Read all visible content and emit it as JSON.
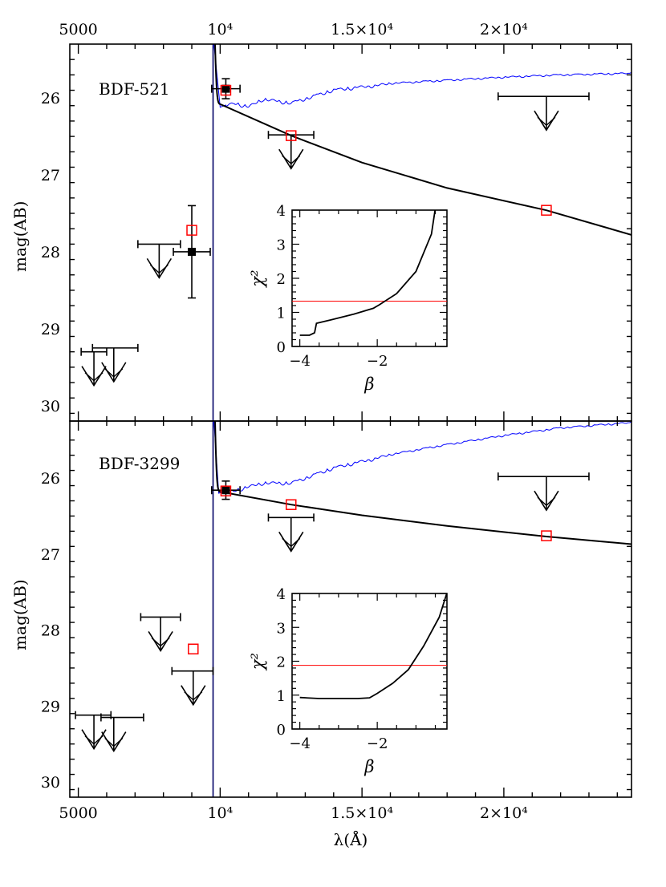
{
  "chart_data": [
    {
      "type": "scatter",
      "panel": "top",
      "label": "BDF-521",
      "xlabel": "λ(Å)",
      "ylabel": "mag(AB)",
      "xlim": [
        4700,
        24500
      ],
      "ylim": [
        30.2,
        25.3
      ],
      "x_ticks": [
        5000,
        10000,
        15000,
        20000
      ],
      "x_tick_labels": [
        "5000",
        "10⁴",
        "1.5×10⁴",
        "2×10⁴"
      ],
      "y_ticks": [
        26,
        27,
        28,
        29,
        30
      ],
      "detections": [
        {
          "x": 10200,
          "y": 25.88,
          "yerr": 0.13,
          "xerr": 500
        },
        {
          "x": 9000,
          "y": 28.0,
          "yerr": 0.6,
          "xerr": 650
        }
      ],
      "upper_limits": [
        {
          "x": 5550,
          "y": 29.3,
          "xmin": 5100,
          "xmax": 6000
        },
        {
          "x": 6250,
          "y": 29.25,
          "xmin": 5500,
          "xmax": 7100
        },
        {
          "x": 7850,
          "y": 27.9,
          "xmin": 7100,
          "xmax": 8600
        },
        {
          "x": 12500,
          "y": 26.48,
          "xmin": 11700,
          "xmax": 13300
        },
        {
          "x": 21500,
          "y": 25.98,
          "xmin": 19800,
          "xmax": 23000
        }
      ],
      "model_points": [
        {
          "x": 9000,
          "y": 27.72
        },
        {
          "x": 10200,
          "y": 25.9
        },
        {
          "x": 12500,
          "y": 26.49
        },
        {
          "x": 21500,
          "y": 27.46
        }
      ],
      "best_fit_powerlaw": {
        "x": [
          10000,
          12500,
          15000,
          18000,
          21500,
          24500
        ],
        "y": [
          26.08,
          26.49,
          26.84,
          27.17,
          27.46,
          27.78
        ]
      },
      "galaxy_template": {
        "x": [
          10000,
          10500,
          11000,
          11500,
          12500,
          14000,
          16000,
          18000,
          20000,
          22000,
          24500
        ],
        "y": [
          26.12,
          26.05,
          26.1,
          26.0,
          26.05,
          25.88,
          25.8,
          25.76,
          25.72,
          25.69,
          25.67
        ]
      },
      "inset": {
        "xlabel": "β",
        "ylabel": "χ²",
        "xlim": [
          -4.2,
          -0.2
        ],
        "ylim": [
          0,
          4
        ],
        "x_ticks": [
          -4,
          -2
        ],
        "y_ticks": [
          0,
          1,
          2,
          3,
          4
        ],
        "threshold": 1.33,
        "curve": {
          "x": [
            -4.0,
            -3.75,
            -3.62,
            -3.57,
            -3.2,
            -2.6,
            -2.1,
            -1.95,
            -1.5,
            -1.0,
            -0.6,
            -0.5
          ],
          "y": [
            0.33,
            0.33,
            0.4,
            0.68,
            0.78,
            0.95,
            1.12,
            1.22,
            1.55,
            2.2,
            3.3,
            4.05
          ]
        }
      }
    },
    {
      "type": "scatter",
      "panel": "bottom",
      "label": "BDF-3299",
      "xlabel": "λ(Å)",
      "ylabel": "mag(AB)",
      "xlim": [
        4700,
        24500
      ],
      "ylim": [
        30.2,
        25.25
      ],
      "x_ticks": [
        5000,
        10000,
        15000,
        20000
      ],
      "x_tick_labels": [
        "5000",
        "10⁴",
        "1.5×10⁴",
        "2×10⁴"
      ],
      "y_ticks": [
        26,
        27,
        28,
        29,
        30
      ],
      "detections": [
        {
          "x": 10200,
          "y": 26.16,
          "yerr": 0.12,
          "xerr": 500
        }
      ],
      "upper_limits": [
        {
          "x": 5550,
          "y": 29.12,
          "xmin": 4900,
          "xmax": 6150
        },
        {
          "x": 6250,
          "y": 29.15,
          "xmin": 5800,
          "xmax": 7300
        },
        {
          "x": 7900,
          "y": 27.83,
          "xmin": 7200,
          "xmax": 8600
        },
        {
          "x": 9050,
          "y": 28.54,
          "xmin": 8300,
          "xmax": 9750
        },
        {
          "x": 12500,
          "y": 26.52,
          "xmin": 11700,
          "xmax": 13300
        },
        {
          "x": 21500,
          "y": 25.98,
          "xmin": 19800,
          "xmax": 23000
        }
      ],
      "model_points": [
        {
          "x": 9050,
          "y": 28.25
        },
        {
          "x": 10200,
          "y": 26.17
        },
        {
          "x": 12500,
          "y": 26.35
        },
        {
          "x": 21500,
          "y": 26.76
        }
      ],
      "best_fit_powerlaw": {
        "x": [
          10000,
          12500,
          15000,
          18000,
          21500,
          24500
        ],
        "y": [
          26.18,
          26.35,
          26.49,
          26.63,
          26.77,
          26.87
        ]
      },
      "galaxy_template": {
        "x": [
          9950,
          10500,
          11000,
          11500,
          12500,
          14000,
          16000,
          18000,
          20000,
          22000,
          24500
        ],
        "y": [
          26.2,
          26.15,
          26.1,
          26.05,
          26.05,
          25.85,
          25.68,
          25.55,
          25.43,
          25.33,
          25.26
        ]
      },
      "inset": {
        "xlabel": "β",
        "ylabel": "χ²",
        "xlim": [
          -4.2,
          -0.2
        ],
        "ylim": [
          0,
          4
        ],
        "x_ticks": [
          -4,
          -2
        ],
        "y_ticks": [
          0,
          1,
          2,
          3,
          4
        ],
        "threshold": 1.88,
        "curve": {
          "x": [
            -4.0,
            -3.5,
            -3.0,
            -2.5,
            -2.2,
            -2.0,
            -1.6,
            -1.2,
            -0.8,
            -0.4,
            -0.2
          ],
          "y": [
            0.93,
            0.9,
            0.9,
            0.9,
            0.92,
            1.05,
            1.35,
            1.75,
            2.45,
            3.3,
            4.02
          ]
        }
      }
    }
  ],
  "colors": {
    "axes": "#000000",
    "template": "#0000ff",
    "model_points": "#ff0000",
    "threshold": "#ff0000",
    "break_line": "#000066"
  }
}
